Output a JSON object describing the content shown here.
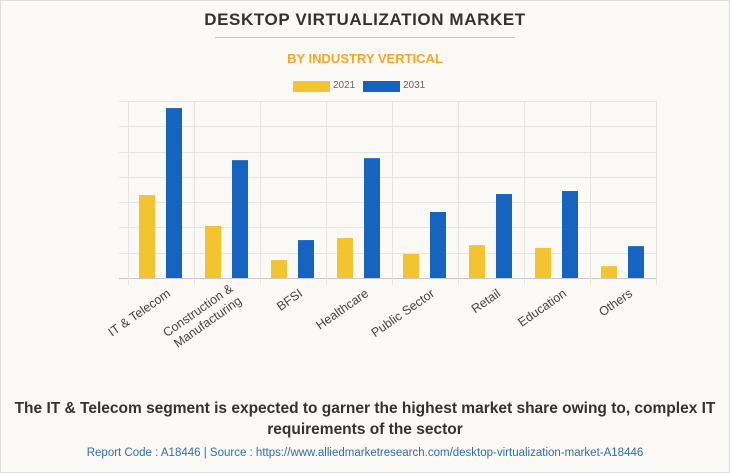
{
  "header": {
    "title": "DESKTOP VIRTUALIZATION MARKET",
    "subtitle": "BY INDUSTRY VERTICAL"
  },
  "legend": [
    {
      "label": "2021",
      "color": "#f4c430"
    },
    {
      "label": "2031",
      "color": "#1565c0"
    }
  ],
  "chart_data": {
    "type": "bar",
    "title": "DESKTOP VIRTUALIZATION MARKET",
    "subtitle": "BY INDUSTRY VERTICAL",
    "xlabel": "",
    "ylabel": "",
    "categories": [
      "IT & Telecom",
      "Construction & Manufacturing",
      "BFSI",
      "Healthcare",
      "Public Sector",
      "Retail",
      "Education",
      "Others"
    ],
    "category_lines": [
      [
        "IT & Telecom"
      ],
      [
        "Construction &",
        "Manufacturing"
      ],
      [
        "BFSI"
      ],
      [
        "Healthcare"
      ],
      [
        "Public Sector"
      ],
      [
        "Retail"
      ],
      [
        "Education"
      ],
      [
        "Others"
      ]
    ],
    "series": [
      {
        "name": "2021",
        "color": "#f4c430",
        "values": [
          3.28,
          2.06,
          0.71,
          1.58,
          0.95,
          1.3,
          1.19,
          0.47
        ]
      },
      {
        "name": "2031",
        "color": "#1565c0",
        "values": [
          6.72,
          4.66,
          1.5,
          4.74,
          2.61,
          3.32,
          3.44,
          1.26
        ]
      }
    ],
    "ylim": [
      0,
      7
    ],
    "y_gridlines": 7,
    "y_tick_labels_shown": false,
    "units": "relative (unlabeled axis, grid units)",
    "grid": true,
    "legend_position": "top-center"
  },
  "footer": {
    "caption": "The IT & Telecom segment is expected to garner the highest market share owing to, complex IT requirements of the sector",
    "source": "Report Code : A18446  |  Source : https://www.alliedmarketresearch.com/desktop-virtualization-market-A18446"
  }
}
